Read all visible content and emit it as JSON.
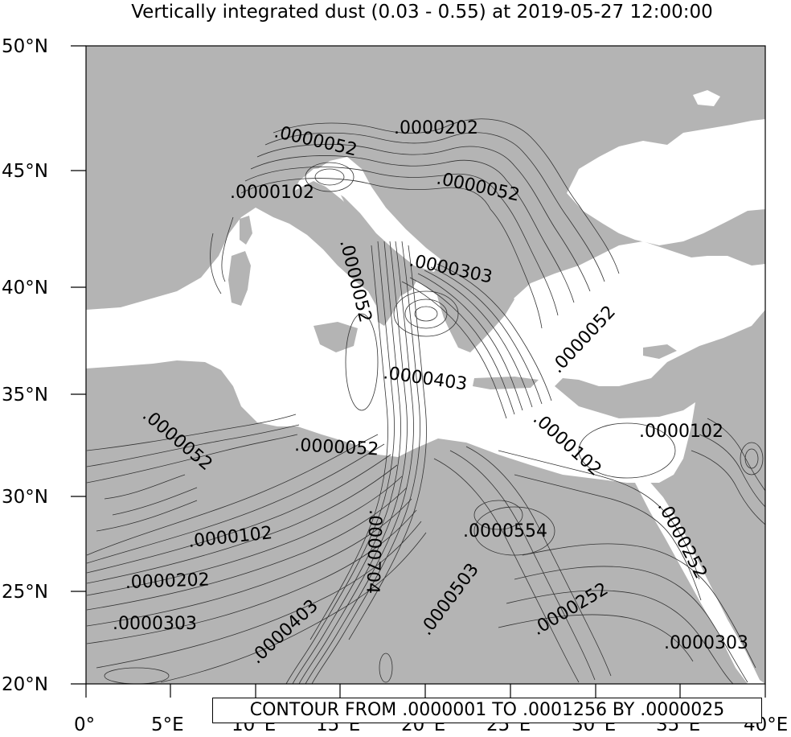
{
  "title": "Vertically integrated dust (0.03 - 0.55) at 2019-05-27 12:00:00",
  "footer_text": "CONTOUR FROM .0000001 TO .0001256 BY .0000025",
  "colors": {
    "land": "#b4b4b4",
    "sea": "#ffffff",
    "contour": "#333333",
    "frame": "#000000"
  },
  "axes": {
    "lat_labels": [
      "50°N",
      "45°N",
      "40°N",
      "35°N",
      "30°N",
      "25°N",
      "20°N"
    ],
    "lon_labels": [
      "0°",
      "5°E",
      "10°E",
      "15°E",
      "20°E",
      "25°E",
      "30°E",
      "35°E",
      "40°E"
    ],
    "lat_range": [
      20,
      50
    ],
    "lon_range": [
      0,
      40
    ]
  },
  "contour_labels": [
    ".0000052",
    ".0000202",
    ".0000052",
    ".0000102",
    ".0000303",
    ".0000052",
    ".0000052",
    ".0000403",
    ".0000102",
    ".0000102",
    ".0000052",
    ".0000052",
    ".0000704",
    ".0000554",
    ".0000102",
    ".0000252",
    ".0000202",
    ".0000503",
    ".0000252",
    ".0000403",
    ".0000303",
    ".0000303"
  ]
}
